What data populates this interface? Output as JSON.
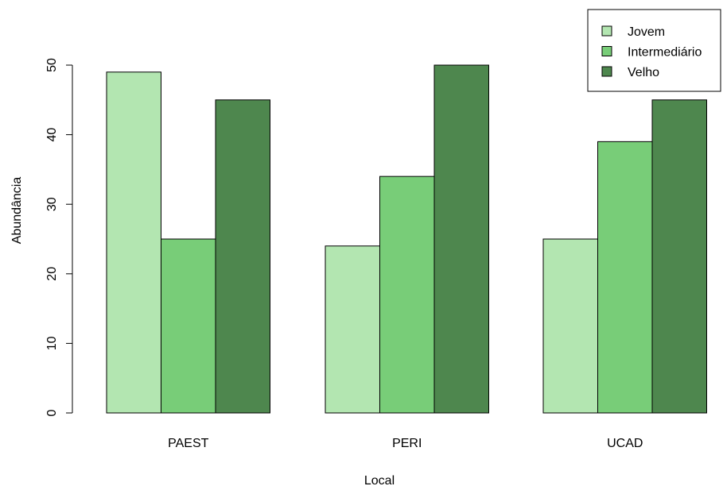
{
  "chart_data": {
    "type": "bar",
    "categories": [
      "PAEST",
      "PERI",
      "UCAD"
    ],
    "series": [
      {
        "name": "Jovem",
        "values": [
          49,
          24,
          25
        ],
        "color": "#b3e6b1"
      },
      {
        "name": "Intermediário",
        "values": [
          25,
          34,
          39
        ],
        "color": "#78cd78"
      },
      {
        "name": "Velho",
        "values": [
          45,
          50,
          45
        ],
        "color": "#4e874e"
      }
    ],
    "xlabel": "Local",
    "ylabel": "Abundância",
    "ylim": [
      0,
      50
    ],
    "yticks": [
      0,
      10,
      20,
      30,
      40,
      50
    ],
    "legend_position": "top-right",
    "grid": false,
    "bar_edge_color": "#000000"
  }
}
